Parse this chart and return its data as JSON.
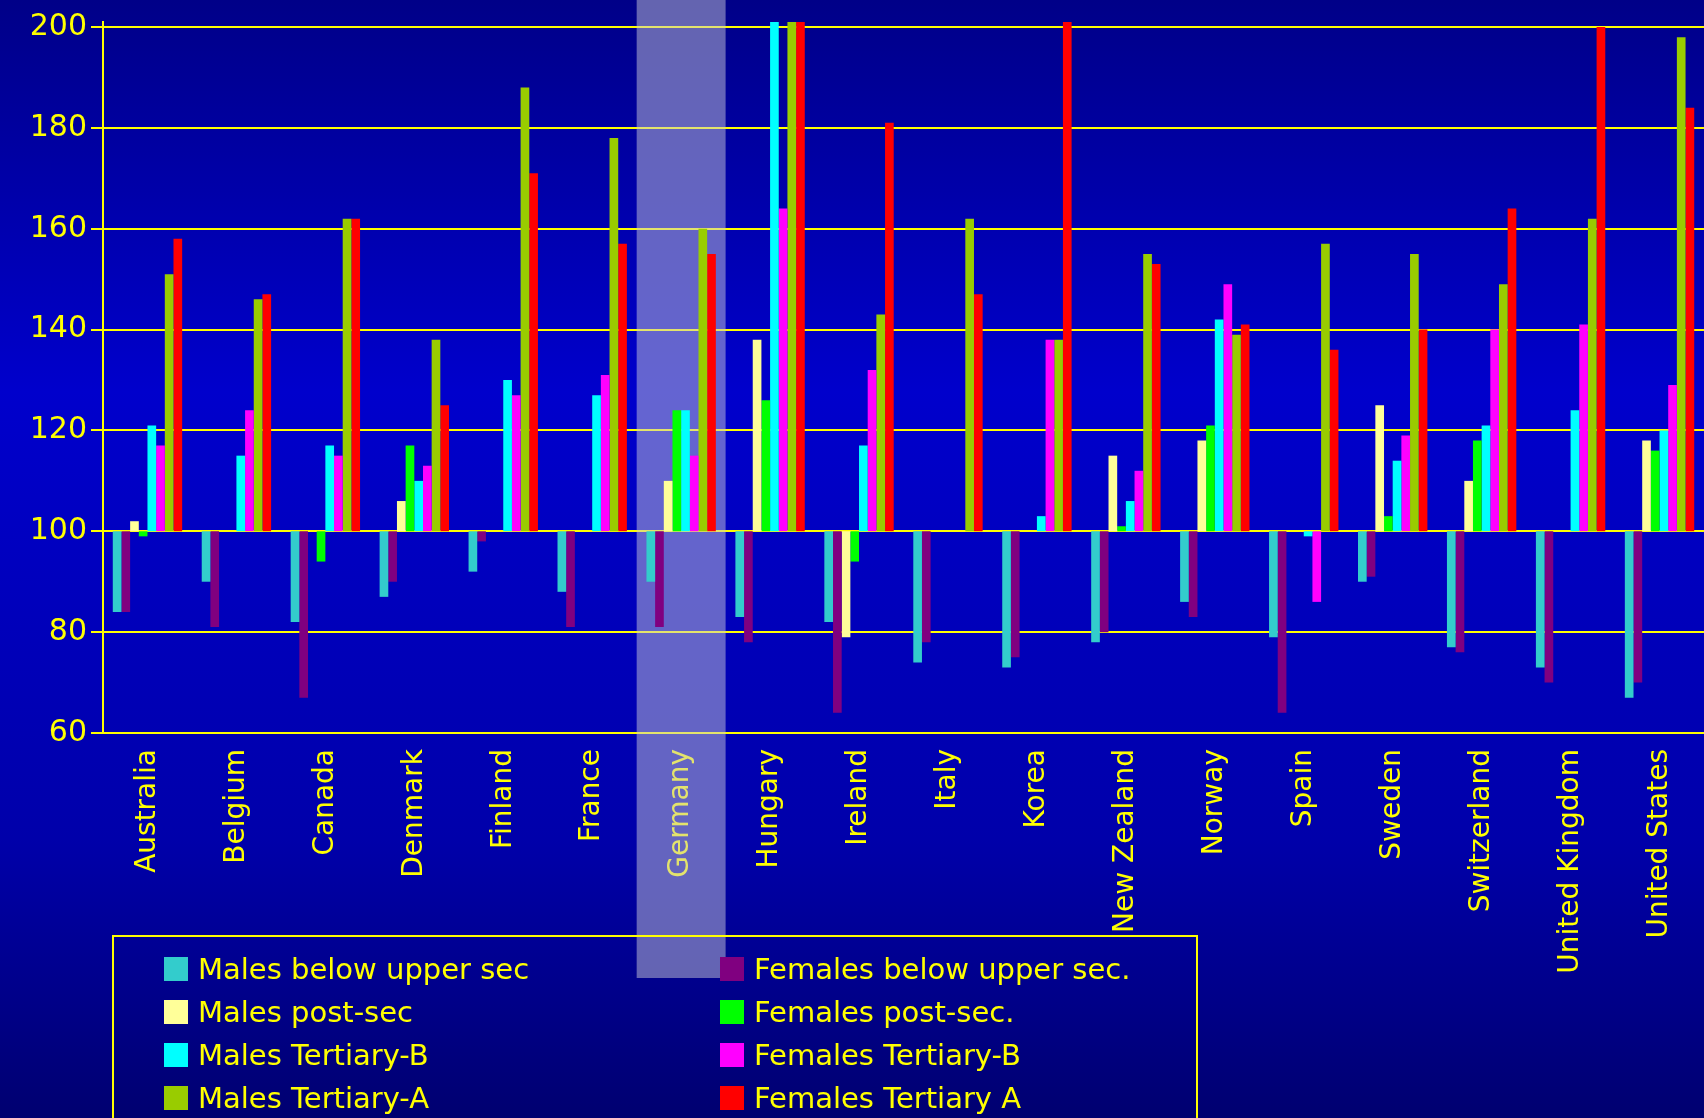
{
  "chart_data": {
    "type": "bar",
    "categories": [
      "Australia",
      "Belgium",
      "Canada",
      "Denmark",
      "Finland",
      "France",
      "Germany",
      "Hungary",
      "Ireland",
      "Italy",
      "Korea",
      "New Zealand",
      "Norway",
      "Spain",
      "Sweden",
      "Switzerland",
      "United Kingdom",
      "United States"
    ],
    "series": [
      {
        "name": "Males below upper sec",
        "color": "#33cccc",
        "base": [
          100,
          100,
          100,
          100,
          100,
          100,
          100,
          100,
          100,
          100,
          100,
          100,
          100,
          100,
          100,
          100,
          100,
          100
        ],
        "values": [
          -16,
          -10,
          -18,
          -13,
          -8,
          -12,
          -10,
          -17,
          -18,
          -26,
          -27,
          -22,
          -14,
          -21,
          -10,
          -23,
          -27,
          -33
        ]
      },
      {
        "name": "Females below upper sec.",
        "color": "#800080",
        "base": [
          100,
          100,
          100,
          100,
          100,
          100,
          100,
          100,
          100,
          100,
          100,
          100,
          100,
          100,
          100,
          100,
          100,
          100
        ],
        "values": [
          -16,
          -19,
          -33,
          -10,
          -2,
          -19,
          -19,
          -22,
          -36,
          -22,
          -25,
          -20,
          -17,
          -36,
          -9,
          -24,
          -30,
          -30
        ]
      },
      {
        "name": "Males post-sec",
        "color": "#ffff99",
        "base": [
          100,
          null,
          null,
          100,
          null,
          null,
          100,
          100,
          100,
          null,
          null,
          100,
          100,
          null,
          100,
          100,
          null,
          100
        ],
        "values": [
          2,
          null,
          null,
          6,
          null,
          null,
          10,
          38,
          -21,
          null,
          null,
          15,
          18,
          null,
          25,
          10,
          null,
          18
        ]
      },
      {
        "name": "Females post-sec.",
        "color": "#00ff00",
        "base": [
          100,
          null,
          100,
          100,
          null,
          null,
          100,
          100,
          100,
          null,
          null,
          100,
          100,
          null,
          100,
          100,
          null,
          100
        ],
        "values": [
          -1,
          null,
          -6,
          17,
          null,
          null,
          24,
          26,
          -6,
          null,
          null,
          1,
          21,
          null,
          3,
          18,
          null,
          16
        ]
      },
      {
        "name": "Males Tertiary-B",
        "color": "#00ffff",
        "base": [
          100,
          100,
          100,
          100,
          100,
          100,
          100,
          100,
          100,
          null,
          100,
          100,
          100,
          100,
          100,
          100,
          100,
          100
        ],
        "values": [
          21,
          15,
          17,
          10,
          30,
          27,
          24,
          101,
          17,
          null,
          3,
          6,
          42,
          -1,
          14,
          21,
          24,
          20
        ]
      },
      {
        "name": "Females Tertiary-B",
        "color": "#ff00ff",
        "base": [
          100,
          100,
          100,
          100,
          100,
          100,
          100,
          100,
          100,
          null,
          100,
          100,
          100,
          100,
          100,
          100,
          100,
          100
        ],
        "values": [
          17,
          24,
          15,
          13,
          27,
          31,
          15,
          64,
          32,
          null,
          38,
          12,
          49,
          -14,
          19,
          40,
          41,
          29
        ]
      },
      {
        "name": "Males Tertiary-A",
        "color": "#99cc00",
        "base": [
          100,
          100,
          100,
          100,
          100,
          100,
          100,
          100,
          100,
          100,
          100,
          100,
          100,
          100,
          100,
          100,
          100,
          100
        ],
        "values": [
          51,
          46,
          62,
          38,
          88,
          78,
          60,
          101,
          43,
          62,
          38,
          55,
          39,
          57,
          55,
          49,
          62,
          98
        ]
      },
      {
        "name": "Females Tertiary A",
        "color": "#ff0000",
        "base": [
          100,
          100,
          100,
          100,
          100,
          100,
          100,
          100,
          100,
          100,
          100,
          100,
          100,
          100,
          100,
          100,
          100,
          100
        ],
        "values": [
          58,
          47,
          62,
          25,
          71,
          57,
          55,
          101,
          81,
          47,
          101,
          53,
          41,
          36,
          40,
          64,
          100,
          84
        ]
      }
    ],
    "ylim": [
      60,
      201
    ],
    "yticks": [
      60,
      80,
      100,
      120,
      140,
      160,
      180,
      200
    ],
    "grid": "y",
    "legend": "bottom left",
    "bands": [
      {
        "axis": "x",
        "from": "Germany",
        "to": "Germany",
        "color": "#c8c8d8"
      }
    ]
  }
}
